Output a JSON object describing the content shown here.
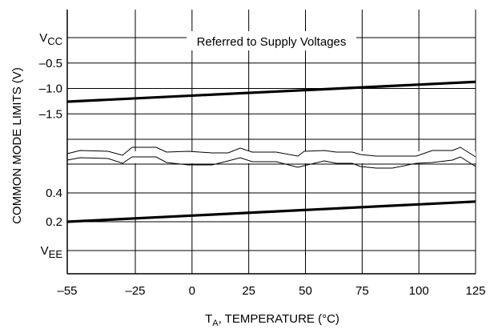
{
  "chart_data": {
    "type": "line",
    "title": "",
    "annotation": "Referred to Supply Voltages",
    "xlabel": {
      "prefix": "T",
      "sub": "A",
      "rest": ", TEMPERATURE (°C)"
    },
    "ylabel": "COMMON MODE LIMITS (V)",
    "x_ticks": [
      -55,
      -25,
      0,
      25,
      50,
      75,
      100,
      125
    ],
    "x_tick_labels": [
      "–55",
      "–25",
      "0",
      "25",
      "50",
      "75",
      "100",
      "125"
    ],
    "xlim": [
      -55,
      125
    ],
    "grid": true,
    "upper_panel": {
      "reference": "VCC",
      "ylim": [
        -2.0,
        0.0
      ],
      "y_ticks": [
        0.0,
        -0.5,
        -1.0,
        -1.5
      ],
      "y_tick_labels": [
        {
          "main": "V",
          "sub": "CC"
        },
        {
          "main": "–0.5",
          "sub": ""
        },
        {
          "main": "–1.0",
          "sub": ""
        },
        {
          "main": "–1.5",
          "sub": ""
        }
      ],
      "series": [
        {
          "x": [
            -55,
            125
          ],
          "y": [
            -1.26,
            -0.87
          ]
        }
      ]
    },
    "lower_panel": {
      "reference": "VEE",
      "ylim": [
        0.0,
        0.6
      ],
      "y_ticks": [
        0.4,
        0.2,
        0.0
      ],
      "y_tick_labels": [
        {
          "main": "0.4",
          "sub": ""
        },
        {
          "main": "0.2",
          "sub": ""
        },
        {
          "main": "V",
          "sub": "EE"
        }
      ],
      "series": [
        {
          "x": [
            -55,
            125
          ],
          "y": [
            0.2,
            0.34
          ]
        }
      ]
    },
    "colors": {
      "line": "#000000",
      "grid": "#000000",
      "background": "#ffffff"
    }
  }
}
